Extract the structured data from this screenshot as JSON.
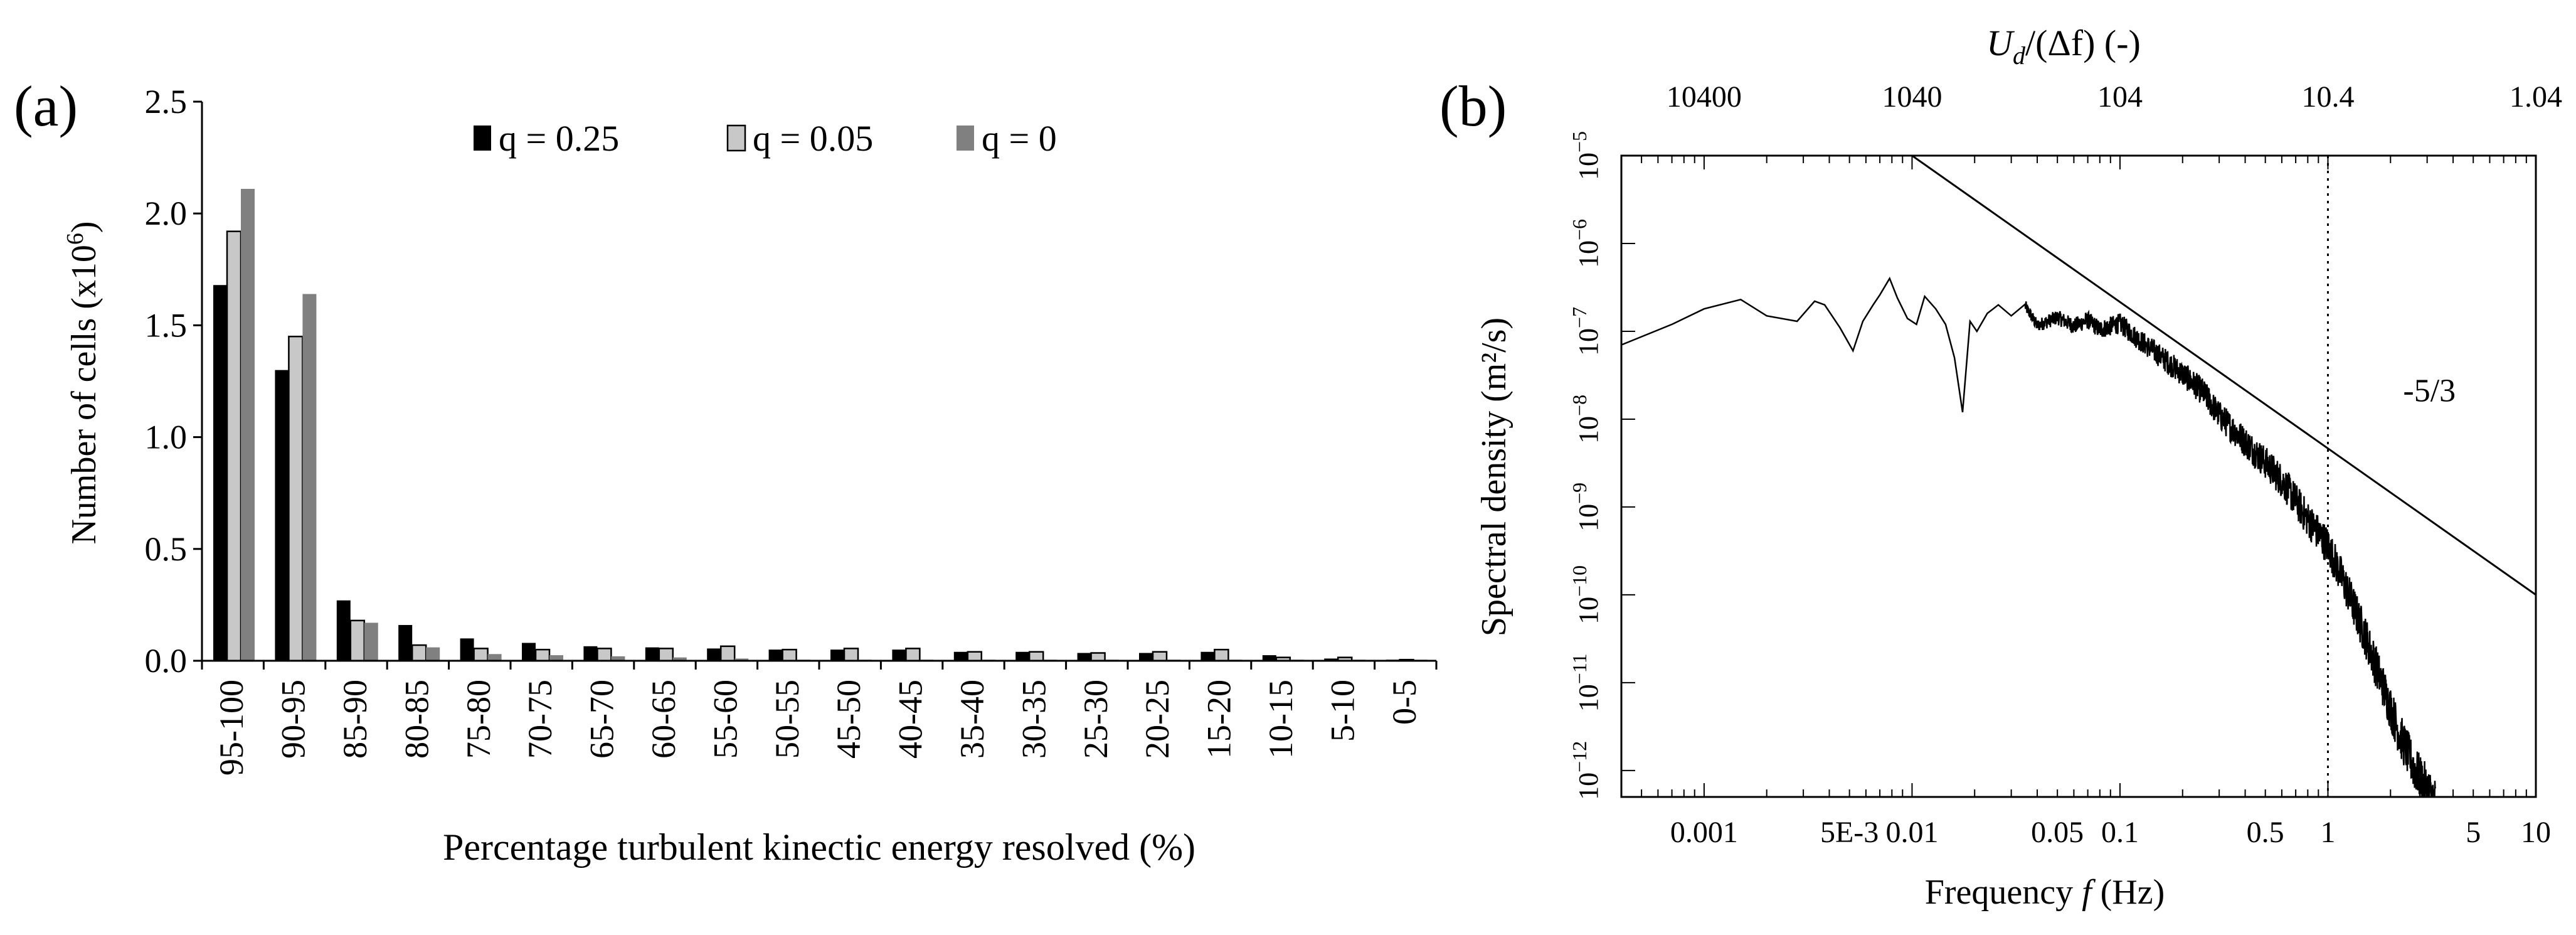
{
  "chart_data": [
    {
      "panel_label": "(a)",
      "type": "bar",
      "xlabel": "Percentage turbulent kinectic energy resolved (%)",
      "ylabel_main": "Number of cells (x10",
      "ylabel_exp": "6",
      "ylabel_close": ")",
      "ylim": [
        0,
        2.5
      ],
      "yticks": [
        "0.0",
        "0.5",
        "1.0",
        "1.5",
        "2.0",
        "2.5"
      ],
      "legend_position": "top-center",
      "categories": [
        "95-100",
        "90-95",
        "85-90",
        "80-85",
        "75-80",
        "70-75",
        "65-70",
        "60-65",
        "55-60",
        "50-55",
        "45-50",
        "40-45",
        "35-40",
        "30-35",
        "25-30",
        "20-25",
        "15-20",
        "10-15",
        "5-10",
        "0-5"
      ],
      "series": [
        {
          "name": "q = 0.25",
          "color": "#000000",
          "values": [
            1.68,
            1.3,
            0.27,
            0.16,
            0.1,
            0.08,
            0.065,
            0.06,
            0.055,
            0.05,
            0.05,
            0.05,
            0.04,
            0.04,
            0.035,
            0.035,
            0.04,
            0.025,
            0.01,
            0.005
          ]
        },
        {
          "name": "q = 0.05",
          "color": "#c8c8c8",
          "values": [
            1.92,
            1.45,
            0.18,
            0.07,
            0.055,
            0.05,
            0.055,
            0.055,
            0.065,
            0.05,
            0.055,
            0.055,
            0.04,
            0.04,
            0.035,
            0.04,
            0.05,
            0.015,
            0.015,
            0.005
          ]
        },
        {
          "name": "q = 0",
          "color": "#808080",
          "values": [
            2.11,
            1.64,
            0.17,
            0.06,
            0.03,
            0.025,
            0.02,
            0.015,
            0.01,
            0.005,
            0.005,
            0.005,
            0.005,
            0.005,
            0.005,
            0.005,
            0.005,
            0.005,
            0.005,
            0.005
          ]
        }
      ]
    },
    {
      "panel_label": "(b)",
      "type": "line",
      "x_scale": "log",
      "y_scale": "log",
      "xlabel_pre": "Frequency ",
      "xlabel_var": "f",
      "xlabel_post": " (Hz)",
      "ylabel": "Spectral density (m²/s)",
      "xlim": [
        0.0004,
        10
      ],
      "ylim": [
        5e-13,
        1e-05
      ],
      "xticks": [
        {
          "value": 0.001,
          "label": "0.001"
        },
        {
          "value": 0.005,
          "label": "5E-3"
        },
        {
          "value": 0.01,
          "label": "0.01"
        },
        {
          "value": 0.05,
          "label": "0.05"
        },
        {
          "value": 0.1,
          "label": "0.1"
        },
        {
          "value": 0.5,
          "label": "0.5"
        },
        {
          "value": 1,
          "label": "1"
        },
        {
          "value": 5,
          "label": "5"
        },
        {
          "value": 10,
          "label": "10"
        }
      ],
      "yticks": [
        {
          "value": 1e-12,
          "base": "10",
          "exp": "−12"
        },
        {
          "value": 1e-11,
          "base": "10",
          "exp": "−11"
        },
        {
          "value": 1e-10,
          "base": "10",
          "exp": "−10"
        },
        {
          "value": 1e-09,
          "base": "10",
          "exp": "−9"
        },
        {
          "value": 1e-08,
          "base": "10",
          "exp": "−8"
        },
        {
          "value": 1e-07,
          "base": "10",
          "exp": "−7"
        },
        {
          "value": 1e-06,
          "base": "10",
          "exp": "−6"
        },
        {
          "value": 1e-05,
          "base": "10",
          "exp": "−5"
        }
      ],
      "top_axis_label_var": "U",
      "top_axis_label_sub": "d",
      "top_axis_label_rest": "/(Δf)  (-)",
      "top_axis_ticks": [
        {
          "freq": 0.001,
          "label": "10400"
        },
        {
          "freq": 0.01,
          "label": "1040"
        },
        {
          "freq": 0.1,
          "label": "104"
        },
        {
          "freq": 1,
          "label": "10.4"
        },
        {
          "freq": 10,
          "label": "1.04"
        }
      ],
      "reference_line": {
        "label": "-5/3",
        "slope": -1.6667,
        "from": [
          0.01,
          1e-05
        ],
        "to": [
          10,
          1e-10
        ],
        "label_at": [
          2.3,
          1.6e-08
        ]
      },
      "vertical_marker": {
        "x": 1,
        "style": "dotted"
      },
      "series": [
        {
          "name": "spectrum",
          "color": "#000000",
          "x": [
            0.0004,
            0.0007,
            0.001,
            0.0015,
            0.002,
            0.0028,
            0.0034,
            0.0038,
            0.0045,
            0.0052,
            0.0058,
            0.0065,
            0.007,
            0.0078,
            0.0085,
            0.0095,
            0.0105,
            0.0115,
            0.013,
            0.0145,
            0.016,
            0.0175,
            0.019,
            0.0205,
            0.023,
            0.026,
            0.03,
            0.035,
            0.04,
            0.05,
            0.06,
            0.07,
            0.08,
            0.1,
            0.12,
            0.15,
            0.2,
            0.25,
            0.3,
            0.4,
            0.5,
            0.6,
            0.7,
            0.8,
            1.0,
            1.2,
            1.5,
            1.8,
            2.2,
            2.6,
            3.0,
            3.3
          ],
          "y": [
            7e-08,
            1.2e-07,
            1.8e-07,
            2.3e-07,
            1.5e-07,
            1.3e-07,
            2.2e-07,
            2e-07,
            1.1e-07,
            6e-08,
            1.3e-07,
            2e-07,
            2.6e-07,
            4e-07,
            2.4e-07,
            1.4e-07,
            1.2e-07,
            2.5e-07,
            1.8e-07,
            1.2e-07,
            5e-08,
            1.2e-08,
            1.3e-07,
            1e-07,
            1.6e-07,
            2e-07,
            1.5e-07,
            2e-07,
            1.2e-07,
            1.5e-07,
            1.2e-07,
            1.4e-07,
            1.1e-07,
            1.3e-07,
            9e-08,
            6e-08,
            3.5e-08,
            2.2e-08,
            1.2e-08,
            6e-09,
            3.5e-09,
            2.2e-09,
            1.3e-09,
            8e-10,
            4e-10,
            1.5e-10,
            4e-11,
            1.2e-11,
            3e-12,
            1.2e-12,
            7e-13,
            5e-13
          ],
          "noise_amplitude_decades": 0.55
        }
      ]
    }
  ]
}
